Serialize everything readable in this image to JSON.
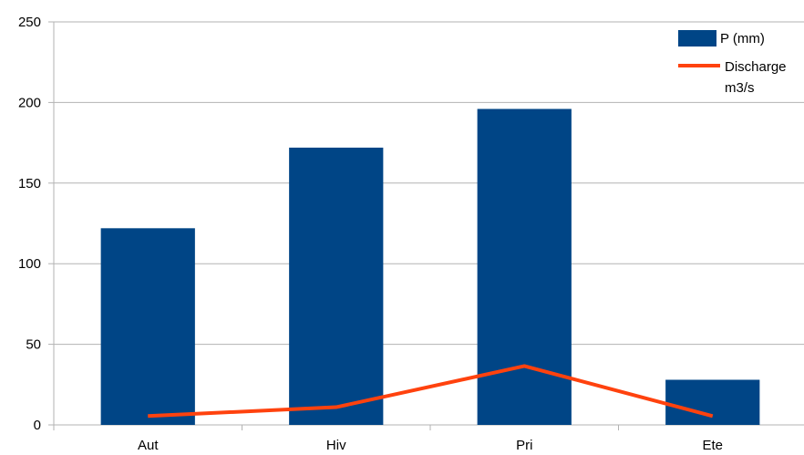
{
  "chart_data": {
    "type": "bar",
    "categories": [
      "Aut",
      "Hiv",
      "Pri",
      "Ete"
    ],
    "ylim": [
      0,
      250
    ],
    "yticks": [
      0,
      50,
      100,
      150,
      200,
      250
    ],
    "grid": true,
    "legend_position": "top-right",
    "series": [
      {
        "name": "P (mm)",
        "type": "bar",
        "values": [
          122,
          172,
          196,
          28
        ],
        "color": "#004586"
      },
      {
        "name": "Discharge m3/s",
        "legend_lines": [
          "Discharge",
          "m3/s"
        ],
        "type": "line",
        "values": [
          5.5,
          11,
          36.5,
          5.5
        ],
        "color": "#ff420e"
      }
    ]
  }
}
